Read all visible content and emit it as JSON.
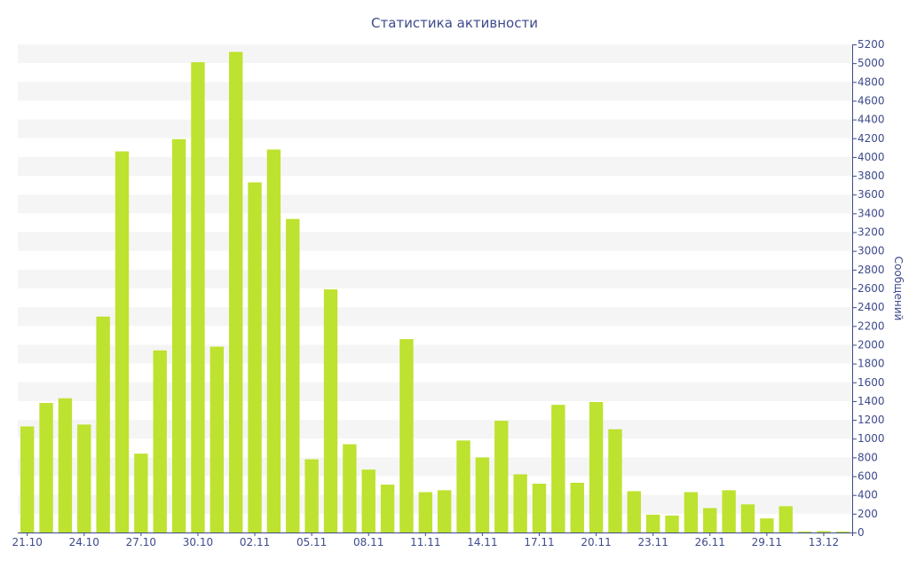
{
  "chart_data": {
    "type": "bar",
    "title": "Статистика активности",
    "xlabel": "",
    "ylabel": "Сообщений",
    "ylim": [
      0,
      5200
    ],
    "y_ticks": [
      0,
      200,
      400,
      600,
      800,
      1000,
      1200,
      1400,
      1600,
      1800,
      2000,
      2200,
      2400,
      2600,
      2800,
      3000,
      3200,
      3400,
      3600,
      3800,
      4000,
      4200,
      4400,
      4600,
      4800,
      5000,
      5200
    ],
    "y_axis_position": "right",
    "grid": "alternating horizontal bands",
    "bar_color": "#bde22f",
    "text_color": "#3e4a8c",
    "categories": [
      "21.10",
      "22.10",
      "23.10",
      "24.10",
      "25.10",
      "26.10",
      "27.10",
      "28.10",
      "29.10",
      "30.10",
      "31.10",
      "01.11",
      "02.11",
      "03.11",
      "04.11",
      "05.11",
      "06.11",
      "07.11",
      "08.11",
      "09.11",
      "10.11",
      "11.11",
      "12.11",
      "13.11",
      "14.11",
      "15.11",
      "16.11",
      "17.11",
      "18.11",
      "19.11",
      "20.11",
      "21.11",
      "22.11",
      "23.11",
      "24.11",
      "25.11",
      "26.11",
      "27.11",
      "28.11",
      "29.11",
      "30.11",
      "11.12",
      "13.12",
      "15.12"
    ],
    "x_tick_labels": [
      "21.10",
      "24.10",
      "27.10",
      "30.10",
      "02.11",
      "05.11",
      "08.11",
      "11.11",
      "14.11",
      "17.11",
      "20.11",
      "23.11",
      "26.11",
      "29.11",
      "13.12"
    ],
    "values": [
      1130,
      1380,
      1430,
      1150,
      2300,
      4060,
      840,
      1940,
      4190,
      5010,
      1980,
      5120,
      3730,
      4080,
      3340,
      780,
      2590,
      940,
      670,
      510,
      2060,
      430,
      450,
      980,
      800,
      1190,
      620,
      520,
      1360,
      530,
      1390,
      1100,
      440,
      190,
      180,
      430,
      260,
      450,
      300,
      150,
      280,
      10,
      15,
      10
    ]
  }
}
